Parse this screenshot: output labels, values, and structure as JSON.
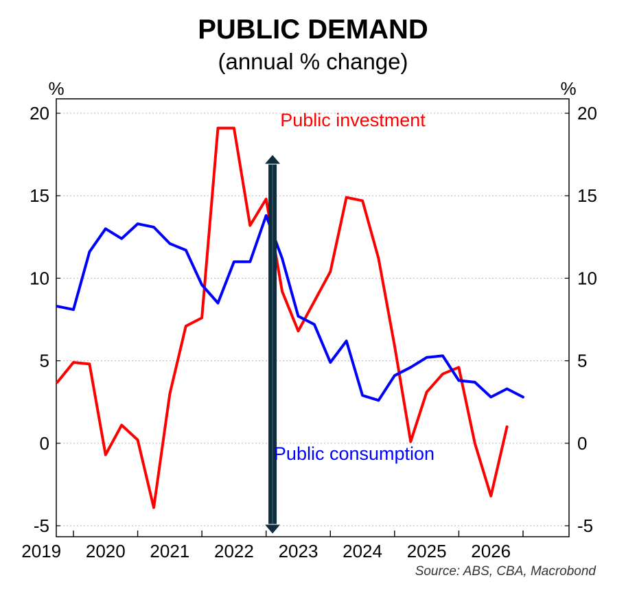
{
  "chart_data": {
    "type": "line",
    "title": "PUBLIC DEMAND",
    "subtitle": "(annual % change)",
    "y_unit_left": "%",
    "y_unit_right": "%",
    "ylim": [
      -5.5,
      20
    ],
    "y_ticks": [
      20,
      15,
      10,
      5,
      0,
      -5
    ],
    "y_tick_labels": [
      "20",
      "15",
      "10",
      "5",
      "0",
      "-5"
    ],
    "xlim": [
      2018.5,
      2026.75
    ],
    "x_ticks": [
      2019,
      2020,
      2021,
      2022,
      2023,
      2024,
      2025,
      2026
    ],
    "x_tick_labels": [
      "2019",
      "2020",
      "2021",
      "2022",
      "2023",
      "2024",
      "2025",
      "2026"
    ],
    "grid": true,
    "series": [
      {
        "name": "Public investment",
        "color": "#ff0000",
        "x": [
          2018.75,
          2019.0,
          2019.25,
          2019.5,
          2019.75,
          2020.0,
          2020.25,
          2020.5,
          2020.75,
          2021.0,
          2021.25,
          2021.5,
          2021.75,
          2022.0,
          2022.25,
          2022.5,
          2022.75,
          2023.0,
          2023.25,
          2023.5,
          2023.75,
          2024.0,
          2024.25,
          2024.5,
          2024.75,
          2025.0,
          2025.25,
          2025.5,
          2025.75
        ],
        "y": [
          3.7,
          4.9,
          4.8,
          -0.7,
          1.1,
          0.2,
          -3.9,
          3.0,
          7.1,
          7.6,
          19.1,
          19.1,
          13.2,
          14.8,
          9.2,
          6.8,
          8.6,
          10.4,
          14.9,
          14.7,
          11.2,
          5.9,
          0.1,
          3.1,
          4.2,
          4.6,
          0.0,
          -3.2,
          1.0
        ]
      },
      {
        "name": "Public consumption",
        "color": "#0000ff",
        "x": [
          2018.75,
          2019.0,
          2019.25,
          2019.5,
          2019.75,
          2020.0,
          2020.25,
          2020.5,
          2020.75,
          2021.0,
          2021.25,
          2021.5,
          2021.75,
          2022.0,
          2022.25,
          2022.5,
          2022.75,
          2023.0,
          2023.25,
          2023.5,
          2023.75,
          2024.0,
          2024.25,
          2024.5,
          2024.75,
          2025.0,
          2025.25,
          2025.5,
          2025.75
        ],
        "y": [
          8.3,
          8.1,
          11.6,
          13.0,
          12.4,
          13.3,
          13.1,
          12.1,
          11.7,
          9.6,
          8.5,
          11.0,
          11.0,
          13.8,
          11.2,
          7.7,
          7.2,
          4.9,
          6.2,
          2.9,
          2.6,
          4.1,
          4.6,
          5.2,
          5.3,
          3.8,
          3.7,
          2.8,
          3.3
        ]
      }
    ],
    "series_last_extra": [
      {
        "name": "Public consumption",
        "x": 2026.0,
        "y": 2.8
      }
    ],
    "annotations": [
      {
        "text": "Public investment",
        "color": "#ff0000"
      },
      {
        "text": "Public consumption",
        "color": "#0000ff"
      },
      {
        "type": "double-arrow",
        "x": 2022.1,
        "y_top": 17.5,
        "y_bottom": -5.5,
        "color": "#0d2d3d"
      }
    ],
    "source": "Source: ABS, CBA, Macrobond"
  }
}
